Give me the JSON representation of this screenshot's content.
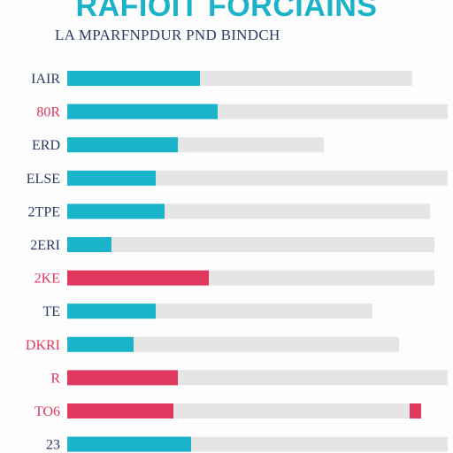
{
  "chart_data": {
    "type": "bar",
    "orientation": "horizontal",
    "title": "RAFIOIT FORCIAINS",
    "subtitle": "LA MPARFNPDUR PND BINDCH",
    "xlabel": "",
    "ylabel": "",
    "categories": [
      "IAIR",
      "80R",
      "ERD",
      "ELSE",
      "2TPE",
      "2ERI",
      "2KE",
      "TE",
      "DKRI",
      "R",
      "TO6",
      "23"
    ],
    "values": [
      30,
      34,
      25,
      20,
      22,
      10,
      32,
      20,
      15,
      25,
      24,
      28
    ],
    "track_totals": [
      78,
      86,
      58,
      86,
      82,
      83,
      83,
      69,
      75,
      86,
      80,
      86
    ],
    "row_colors": [
      "#1ab3c9",
      "#1ab3c9",
      "#1ab3c9",
      "#1ab3c9",
      "#1ab3c9",
      "#1ab3c9",
      "#e0385f",
      "#1ab3c9",
      "#1ab3c9",
      "#e0385f",
      "#e0385f",
      "#1ab3c9"
    ],
    "label_colors": [
      "#2d3a63",
      "#e0385f",
      "#2d3a63",
      "#2d3a63",
      "#2d3a63",
      "#2d3a63",
      "#e0385f",
      "#2d3a63",
      "#e0385f",
      "#e0385f",
      "#e0385f",
      "#2d3a63"
    ],
    "end_marker_rows": [
      10
    ],
    "xlim": [
      0,
      86
    ],
    "grid": false,
    "legend": "none"
  },
  "colors": {
    "title": "#1ab3c9",
    "subtitle": "#2d3a63",
    "track": "#e5e5e5",
    "accent_teal": "#1ab3c9",
    "accent_pink": "#e0385f"
  }
}
